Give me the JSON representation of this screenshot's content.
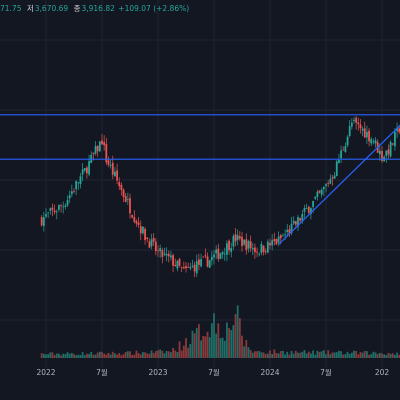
{
  "ohlc_bar": {
    "high_value": "71.75",
    "low_label": "저",
    "low_value": "3,670.69",
    "close_label": "종",
    "close_value": "3,916.82",
    "change": "+109.07 (+2.86%)"
  },
  "colors": {
    "background": "#131722",
    "up": "#26a69a",
    "down": "#ef5350",
    "up_volume": "#1f6e68",
    "down_volume": "#8a3a3a",
    "trend_line": "#2962ff",
    "grid": "#1f2433",
    "text": "#b2b5be"
  },
  "chart_data": {
    "type": "candlestick",
    "title": "",
    "xlabel": "",
    "ylabel": "",
    "x_tick_labels": [
      "7월",
      "2022",
      "7월",
      "2023",
      "7월",
      "2024",
      "7월",
      "202"
    ],
    "x_tick_weeks": [
      -24,
      2,
      28,
      54,
      80,
      106,
      132,
      158
    ],
    "x_axis": {
      "start": "2021-01",
      "end": "2025-02",
      "unit": "weekly"
    },
    "y_range_relative": [
      0.0,
      1.0
    ],
    "horizontal_lines": [
      {
        "name": "resistance",
        "level_relative": 0.655
      },
      {
        "name": "support",
        "level_relative": 0.47
      }
    ],
    "trendlines": [
      {
        "name": "ascending-trendline",
        "from": {
          "week": 110,
          "relative": 0.115
        },
        "to": {
          "week": 172,
          "relative": 0.66
        }
      }
    ],
    "price_path_relative": [
      [
        0,
        0.22
      ],
      [
        10,
        0.28
      ],
      [
        20,
        0.42
      ],
      [
        28,
        0.55
      ],
      [
        30,
        0.47
      ],
      [
        36,
        0.36
      ],
      [
        42,
        0.25
      ],
      [
        48,
        0.15
      ],
      [
        54,
        0.08
      ],
      [
        60,
        0.05
      ],
      [
        66,
        0.0
      ],
      [
        72,
        0.03
      ],
      [
        78,
        0.05
      ],
      [
        84,
        0.09
      ],
      [
        90,
        0.14
      ],
      [
        94,
        0.12
      ],
      [
        98,
        0.1
      ],
      [
        100,
        0.09
      ],
      [
        105,
        0.11
      ],
      [
        110,
        0.13
      ],
      [
        118,
        0.2
      ],
      [
        124,
        0.27
      ],
      [
        130,
        0.33
      ],
      [
        136,
        0.42
      ],
      [
        140,
        0.52
      ],
      [
        144,
        0.62
      ],
      [
        148,
        0.6
      ],
      [
        154,
        0.55
      ],
      [
        158,
        0.48
      ],
      [
        162,
        0.52
      ],
      [
        166,
        0.6
      ],
      [
        170,
        0.8
      ],
      [
        174,
        0.97
      ],
      [
        178,
        0.93
      ],
      [
        180,
        0.99
      ]
    ],
    "volume_relative": [
      [
        0,
        0.05
      ],
      [
        40,
        0.06
      ],
      [
        60,
        0.08
      ],
      [
        70,
        0.25
      ],
      [
        80,
        0.45
      ],
      [
        86,
        0.35
      ],
      [
        90,
        0.55
      ],
      [
        94,
        0.2
      ],
      [
        98,
        0.08
      ],
      [
        120,
        0.07
      ],
      [
        160,
        0.06
      ],
      [
        180,
        0.05
      ]
    ]
  }
}
